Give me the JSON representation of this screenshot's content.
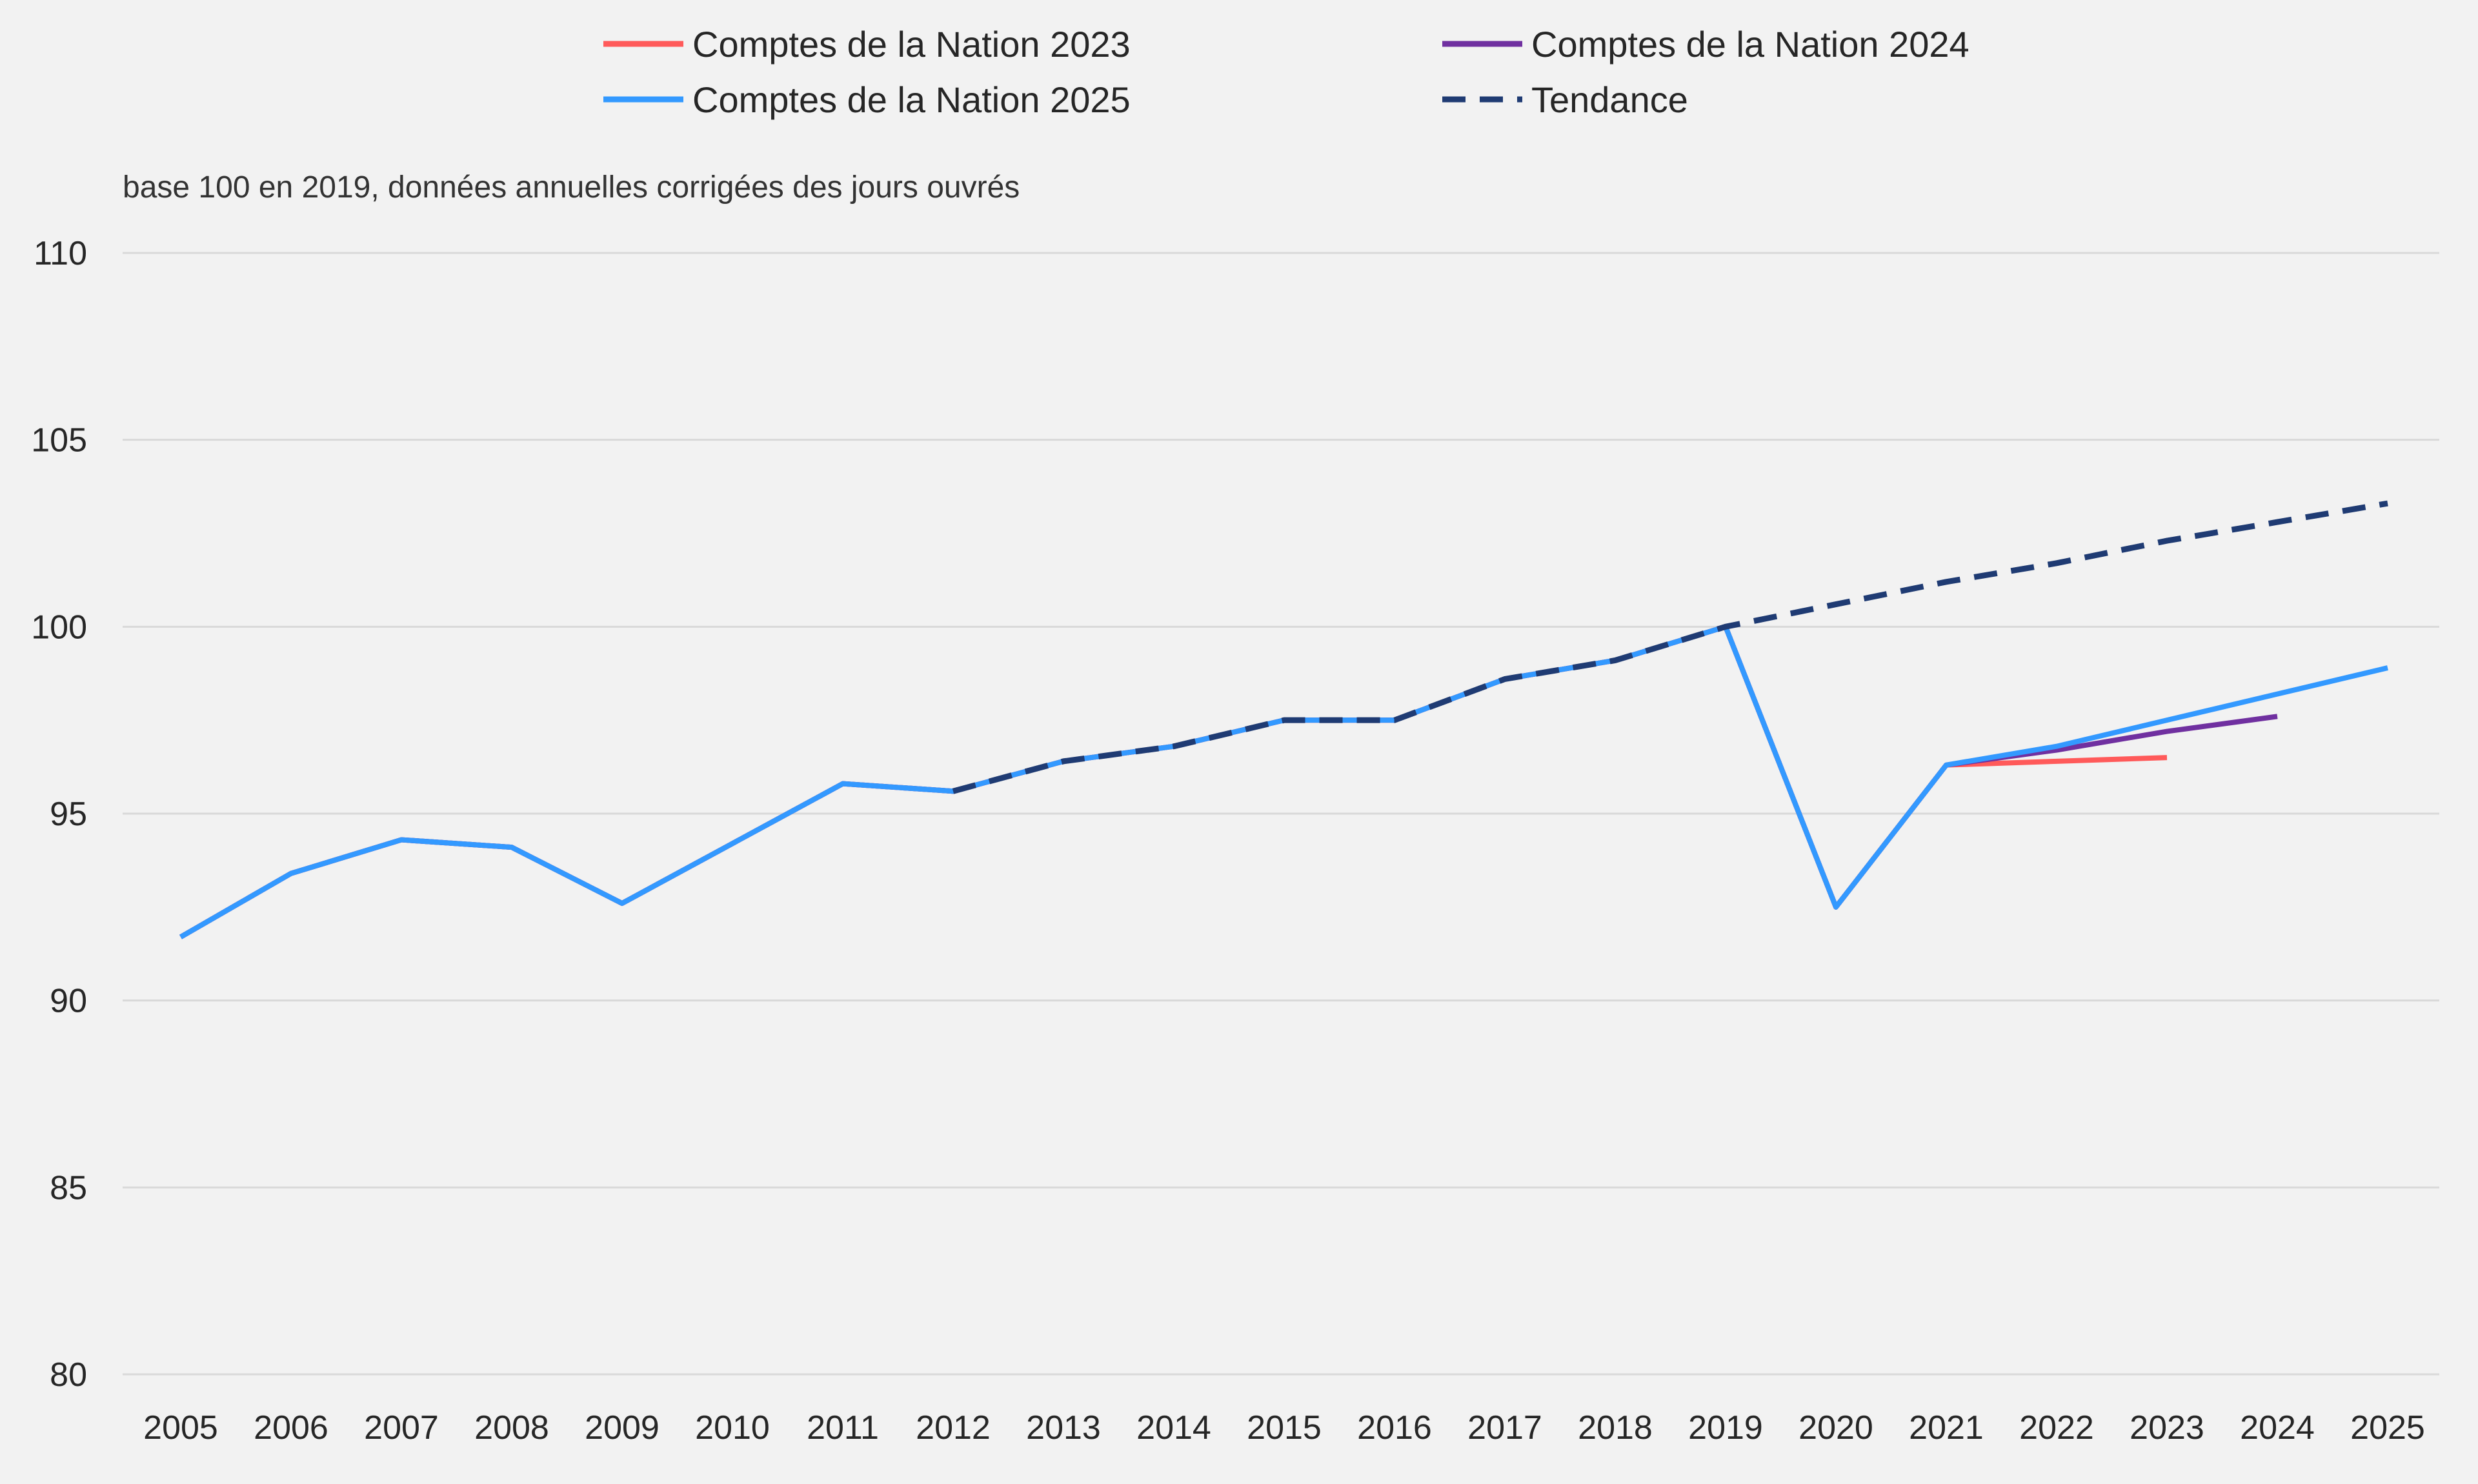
{
  "chart_data": {
    "type": "line",
    "subtitle": "base 100 en 2019, données annuelles corrigées des jours ouvrés",
    "x": [
      "2005",
      "2006",
      "2007",
      "2008",
      "2009",
      "2010",
      "2011",
      "2012",
      "2013",
      "2014",
      "2015",
      "2016",
      "2017",
      "2018",
      "2019",
      "2020",
      "2021",
      "2022",
      "2023",
      "2024",
      "2025"
    ],
    "ylim": [
      80,
      110
    ],
    "yticks": [
      80,
      85,
      90,
      95,
      100,
      105,
      110
    ],
    "grid": true,
    "legend_position": "top",
    "series": [
      {
        "name": "Comptes de la Nation 2023",
        "color": "#ff5a5a",
        "style": "solid",
        "values": [
          91.7,
          93.4,
          94.3,
          94.1,
          92.6,
          94.2,
          95.8,
          95.6,
          96.4,
          96.8,
          97.5,
          97.5,
          98.6,
          99.1,
          100.0,
          92.5,
          96.3,
          96.4,
          96.5,
          null,
          null
        ]
      },
      {
        "name": "Comptes de la Nation 2024",
        "color": "#7030a0",
        "style": "solid",
        "values": [
          91.7,
          93.4,
          94.3,
          94.1,
          92.6,
          94.2,
          95.8,
          95.6,
          96.4,
          96.8,
          97.5,
          97.5,
          98.6,
          99.1,
          100.0,
          92.5,
          96.3,
          96.7,
          97.2,
          97.6,
          null
        ]
      },
      {
        "name": "Comptes de la Nation 2025",
        "color": "#3399ff",
        "style": "solid",
        "values": [
          91.7,
          93.4,
          94.3,
          94.1,
          92.6,
          94.2,
          95.8,
          95.6,
          96.4,
          96.8,
          97.5,
          97.5,
          98.6,
          99.1,
          100.0,
          92.5,
          96.3,
          96.8,
          97.5,
          98.2,
          98.9
        ]
      },
      {
        "name": "Tendance",
        "color": "#1f3b73",
        "style": "dashed",
        "values": [
          null,
          null,
          null,
          null,
          null,
          null,
          null,
          95.6,
          96.4,
          96.8,
          97.5,
          97.5,
          98.6,
          99.1,
          100.0,
          100.6,
          101.2,
          101.7,
          102.3,
          102.8,
          103.3
        ]
      }
    ]
  }
}
